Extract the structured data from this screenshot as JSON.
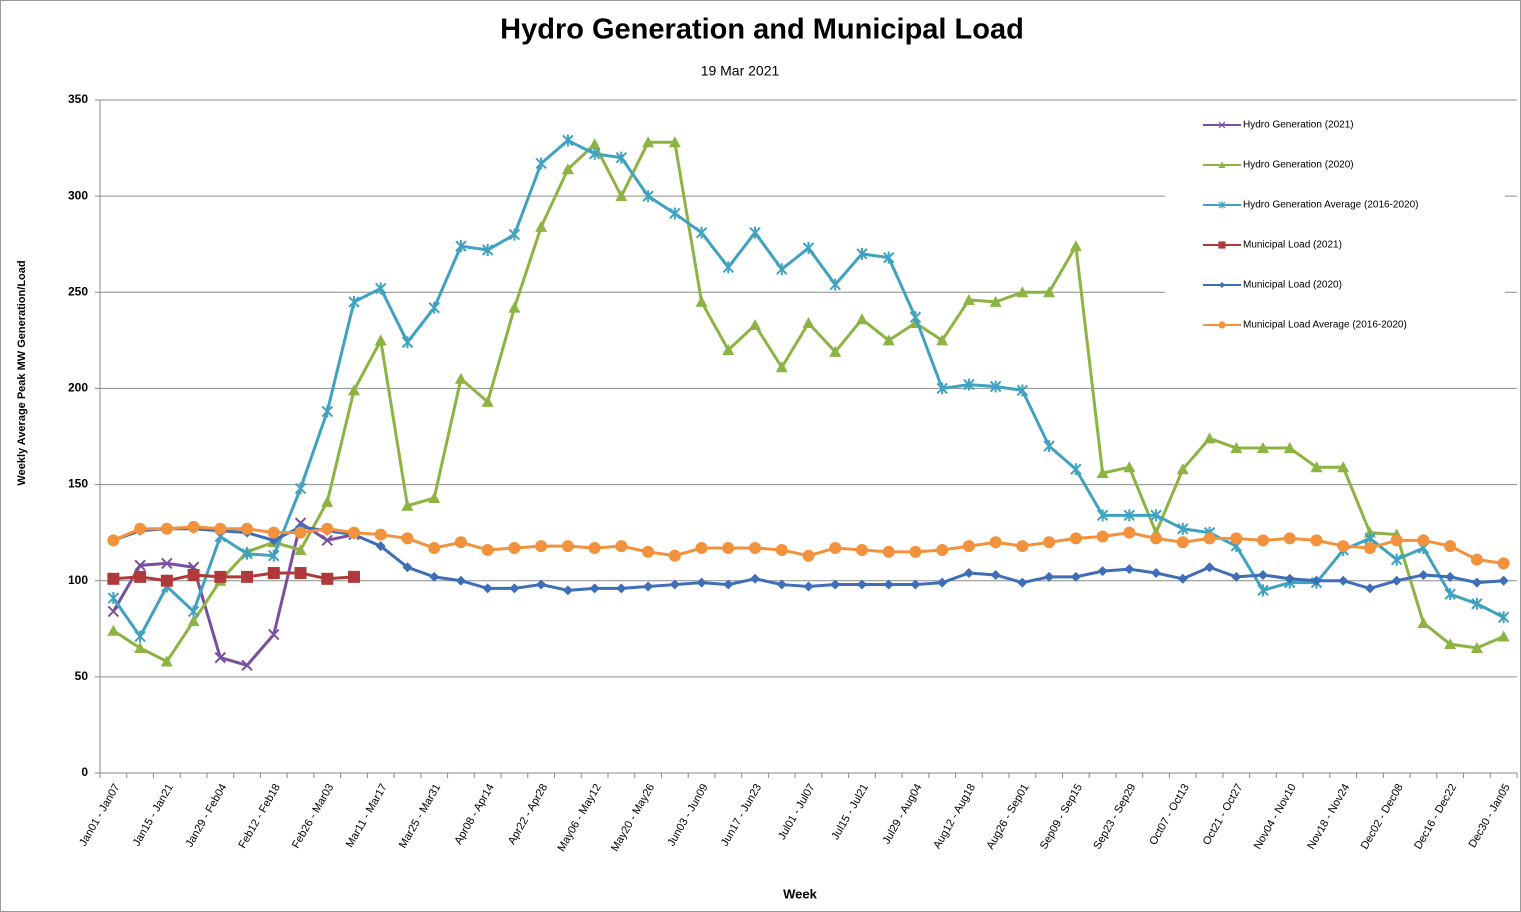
{
  "chart_data": {
    "type": "line",
    "title": "Hydro Generation and Municipal Load",
    "subtitle": "19 Mar 2021",
    "x_label": "Week",
    "y_label": "Weekly Average Peak MW Generation/Load",
    "categories": [
      "Jan01 - Jan07",
      null,
      "Jan15 - Jan21",
      null,
      "Jan29 - Feb04",
      null,
      "Feb12 - Feb18",
      null,
      "Feb26 - Mar03",
      null,
      "Mar11 - Mar17",
      null,
      "Mar25 - Mar31",
      null,
      "Apr08 - Apr14",
      null,
      "Apr22 - Apr28",
      null,
      "May06 - May12",
      null,
      "May20 - May26",
      null,
      "Jun03 - Jun09",
      null,
      "Jun17 - Jun23",
      null,
      "Jul01 - Jul07",
      null,
      "Jul15 - Jul21",
      null,
      "Jul29 - Aug04",
      null,
      "Aug12 - Aug18",
      null,
      "Aug26 - Sep01",
      null,
      "Sep09 - Sep15",
      null,
      "Sep23 - Sep29",
      null,
      "Oct07 - Oct13",
      null,
      "Oct21 - Oct27",
      null,
      "Nov04 - Nov10",
      null,
      "Nov18 - Nov24",
      null,
      "Dec02 - Dec08",
      null,
      "Dec16 - Dec22",
      null,
      "Dec30 - Jan05"
    ],
    "ylim": [
      0,
      350
    ],
    "yticks": [
      0,
      50,
      100,
      150,
      200,
      250,
      300,
      350
    ],
    "grid": true,
    "legend": "top-right",
    "series": [
      {
        "name": "Hydro Generation (2021)",
        "color": "#7a4f9e",
        "marker": "x",
        "values": [
          84,
          108,
          109,
          107,
          60,
          56,
          72,
          130,
          121,
          124,
          null,
          null,
          null,
          null,
          null,
          null,
          null,
          null,
          null,
          null,
          null,
          null,
          null,
          null,
          null,
          null,
          null,
          null,
          null,
          null,
          null,
          null,
          null,
          null,
          null,
          null,
          null,
          null,
          null,
          null,
          null,
          null,
          null,
          null,
          null,
          null,
          null,
          null,
          null,
          null,
          null,
          null,
          null
        ]
      },
      {
        "name": "Hydro Generation (2020)",
        "color": "#8db342",
        "marker": "triangle",
        "values": [
          74,
          65,
          58,
          79,
          100,
          115,
          120,
          116,
          141,
          199,
          225,
          139,
          143,
          205,
          193,
          242,
          284,
          314,
          327,
          300,
          328,
          328,
          245,
          220,
          233,
          211,
          234,
          219,
          236,
          225,
          234,
          225,
          246,
          245,
          250,
          250,
          274,
          156,
          159,
          125,
          158,
          174,
          169,
          169,
          169,
          159,
          159,
          125,
          124,
          78,
          67,
          65,
          71
        ]
      },
      {
        "name": "Hydro Generation Average (2016-2020)",
        "color": "#3ea2c0",
        "marker": "star",
        "values": [
          91,
          71,
          97,
          84,
          123,
          114,
          113,
          148,
          188,
          245,
          252,
          224,
          242,
          274,
          272,
          280,
          317,
          329,
          322,
          320,
          300,
          291,
          281,
          263,
          281,
          262,
          273,
          254,
          270,
          268,
          237,
          200,
          202,
          201,
          199,
          170,
          158,
          134,
          134,
          134,
          127,
          125,
          118,
          95,
          99,
          99,
          116,
          122,
          111,
          117,
          93,
          88,
          81
        ]
      },
      {
        "name": "Municipal Load (2021)",
        "color": "#b03a3a",
        "marker": "square",
        "values": [
          101,
          102,
          100,
          103,
          102,
          102,
          104,
          104,
          101,
          102,
          null,
          null,
          null,
          null,
          null,
          null,
          null,
          null,
          null,
          null,
          null,
          null,
          null,
          null,
          null,
          null,
          null,
          null,
          null,
          null,
          null,
          null,
          null,
          null,
          null,
          null,
          null,
          null,
          null,
          null,
          null,
          null,
          null,
          null,
          null,
          null,
          null,
          null,
          null,
          null,
          null,
          null,
          null
        ]
      },
      {
        "name": "Municipal Load (2020)",
        "color": "#3f6eb8",
        "marker": "diamond",
        "values": [
          121,
          126,
          127,
          127,
          126,
          125,
          121,
          128,
          126,
          124,
          118,
          107,
          102,
          100,
          96,
          96,
          98,
          95,
          96,
          96,
          97,
          98,
          99,
          98,
          101,
          98,
          97,
          98,
          98,
          98,
          98,
          99,
          104,
          103,
          99,
          102,
          102,
          105,
          106,
          104,
          101,
          107,
          102,
          103,
          101,
          100,
          100,
          96,
          100,
          103,
          102,
          99,
          100
        ]
      },
      {
        "name": "Municipal Load Average (2016-2020)",
        "color": "#f2923c",
        "marker": "circle",
        "values": [
          121,
          127,
          127,
          128,
          127,
          127,
          125,
          125,
          127,
          125,
          124,
          122,
          117,
          120,
          116,
          117,
          118,
          118,
          117,
          118,
          115,
          113,
          117,
          117,
          117,
          116,
          113,
          117,
          116,
          115,
          115,
          116,
          118,
          120,
          118,
          120,
          122,
          123,
          125,
          122,
          120,
          122,
          122,
          121,
          122,
          121,
          118,
          117,
          121,
          121,
          118,
          111,
          109
        ]
      }
    ]
  }
}
